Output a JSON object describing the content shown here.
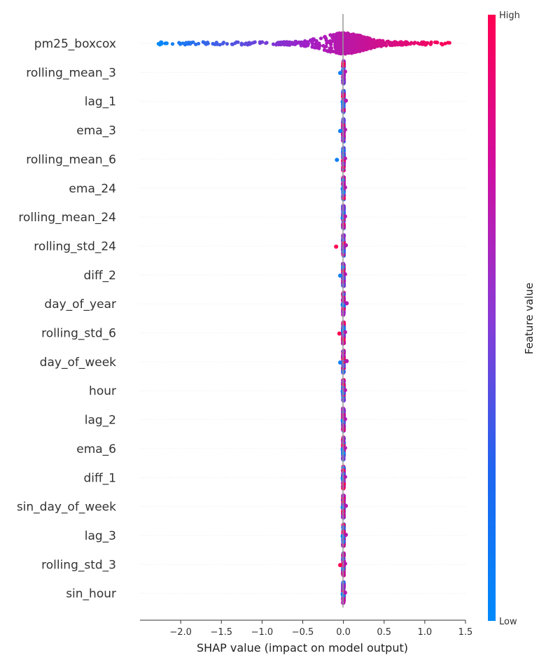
{
  "chart_data": {
    "type": "scatter",
    "subtype": "shap-beeswarm",
    "xlabel": "SHAP value (impact on model output)",
    "xlim": [
      -2.5,
      1.5
    ],
    "xticks": [
      -2.0,
      -1.5,
      -1.0,
      -0.5,
      0.0,
      0.5,
      1.0,
      1.5
    ],
    "xtick_labels": [
      "−2.0",
      "−1.5",
      "−1.0",
      "−0.5",
      "0.0",
      "0.5",
      "1.0",
      "1.5"
    ],
    "features": [
      {
        "name": "pm25_boxcox",
        "min": -2.3,
        "max": 1.35
      },
      {
        "name": "rolling_mean_3",
        "min": -0.04,
        "max": 0.02
      },
      {
        "name": "lag_1",
        "min": -0.01,
        "max": 0.03
      },
      {
        "name": "ema_3",
        "min": -0.04,
        "max": 0.02
      },
      {
        "name": "rolling_mean_6",
        "min": -0.08,
        "max": 0.02
      },
      {
        "name": "ema_24",
        "min": -0.01,
        "max": 0.02
      },
      {
        "name": "rolling_mean_24",
        "min": -0.01,
        "max": 0.02
      },
      {
        "name": "rolling_std_24",
        "min": -0.09,
        "max": 0.03
      },
      {
        "name": "diff_2",
        "min": -0.04,
        "max": 0.02
      },
      {
        "name": "day_of_year",
        "min": -0.01,
        "max": 0.04
      },
      {
        "name": "rolling_std_6",
        "min": -0.05,
        "max": 0.02
      },
      {
        "name": "day_of_week",
        "min": -0.04,
        "max": 0.04
      },
      {
        "name": "hour",
        "min": -0.01,
        "max": 0.02
      },
      {
        "name": "lag_2",
        "min": -0.01,
        "max": 0.02
      },
      {
        "name": "ema_6",
        "min": -0.01,
        "max": 0.02
      },
      {
        "name": "diff_1",
        "min": -0.01,
        "max": 0.02
      },
      {
        "name": "sin_day_of_week",
        "min": -0.01,
        "max": 0.03
      },
      {
        "name": "lag_3",
        "min": -0.01,
        "max": 0.03
      },
      {
        "name": "rolling_std_3",
        "min": -0.04,
        "max": 0.02
      },
      {
        "name": "sin_hour",
        "min": -0.01,
        "max": 0.02
      }
    ],
    "colorbar": {
      "title": "Feature value",
      "high_label": "High",
      "low_label": "Low",
      "low_color": "#008afb",
      "high_color": "#ff0052",
      "mid_color": "#a020c8"
    },
    "zero_line": true,
    "grid": "row-dotted"
  }
}
